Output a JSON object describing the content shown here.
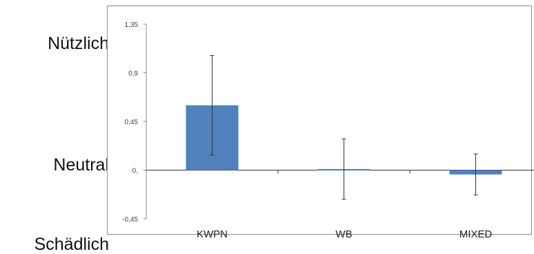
{
  "side_labels": {
    "top": "Nützlich",
    "middle": "Neutral",
    "bottom": "Schädlich"
  },
  "chart_data": {
    "type": "bar",
    "categories": [
      "KWPN",
      "WB",
      "MIXED"
    ],
    "values": [
      0.6,
      0.01,
      -0.04
    ],
    "error_bars": [
      {
        "low": 0.14,
        "high": 1.06
      },
      {
        "low": -0.27,
        "high": 0.29
      },
      {
        "low": -0.23,
        "high": 0.15
      }
    ],
    "ylim": [
      -0.45,
      1.35
    ],
    "yticks": [
      -0.45,
      0,
      0.45,
      0.9,
      1.35
    ],
    "ytick_labels": [
      "-0,45",
      "0,",
      "0,45",
      "0,9",
      "1,35"
    ],
    "title": "",
    "xlabel": "",
    "ylabel": "",
    "grid": false,
    "bar_color": "#4f81bd"
  }
}
